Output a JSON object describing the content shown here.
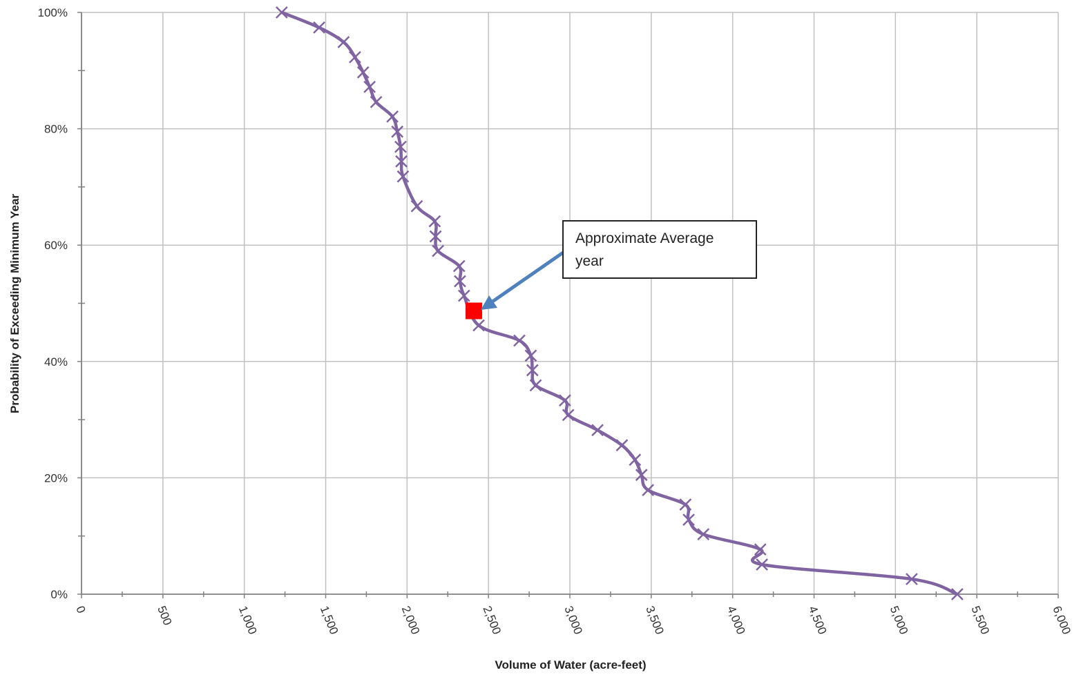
{
  "chart_data": {
    "type": "line",
    "title": "",
    "xlabel": "Volume of Water (acre-feet)",
    "ylabel": "Probability of Exceeding Minimum Year",
    "xlim": [
      0,
      6000
    ],
    "ylim": [
      0,
      1
    ],
    "x_ticks": [
      0,
      500,
      1000,
      1500,
      2000,
      2500,
      3000,
      3500,
      4000,
      4500,
      5000,
      5500,
      6000
    ],
    "x_tick_labels": [
      "0",
      "500",
      "1,000",
      "1,500",
      "2,000",
      "2,500",
      "3,000",
      "3,500",
      "4,000",
      "4,500",
      "5,000",
      "5,500",
      "6,000"
    ],
    "y_ticks": [
      0,
      0.2,
      0.4,
      0.6,
      0.8,
      1.0
    ],
    "y_tick_labels": [
      "0%",
      "20%",
      "40%",
      "60%",
      "80%",
      "100%"
    ],
    "grid": true,
    "series": [
      {
        "color": "#8064a2",
        "marker": "x",
        "points": [
          [
            1230,
            1.0
          ],
          [
            1460,
            0.974
          ],
          [
            1610,
            0.949
          ],
          [
            1680,
            0.923
          ],
          [
            1730,
            0.897
          ],
          [
            1770,
            0.872
          ],
          [
            1810,
            0.846
          ],
          [
            1910,
            0.821
          ],
          [
            1940,
            0.795
          ],
          [
            1960,
            0.769
          ],
          [
            1965,
            0.744
          ],
          [
            1975,
            0.718
          ],
          [
            2060,
            0.667
          ],
          [
            2170,
            0.641
          ],
          [
            2175,
            0.615
          ],
          [
            2190,
            0.59
          ],
          [
            2320,
            0.564
          ],
          [
            2325,
            0.538
          ],
          [
            2350,
            0.513
          ],
          [
            2440,
            0.462
          ],
          [
            2690,
            0.436
          ],
          [
            2760,
            0.41
          ],
          [
            2770,
            0.385
          ],
          [
            2790,
            0.359
          ],
          [
            2970,
            0.333
          ],
          [
            2990,
            0.308
          ],
          [
            3170,
            0.282
          ],
          [
            3320,
            0.256
          ],
          [
            3400,
            0.231
          ],
          [
            3440,
            0.205
          ],
          [
            3480,
            0.179
          ],
          [
            3710,
            0.154
          ],
          [
            3730,
            0.128
          ],
          [
            3820,
            0.103
          ],
          [
            4170,
            0.077
          ],
          [
            4180,
            0.051
          ],
          [
            5100,
            0.026
          ],
          [
            5380,
            0.0
          ]
        ]
      }
    ],
    "highlight_point": {
      "x": 2410,
      "y": 0.487,
      "color": "#ff0000"
    },
    "annotation": {
      "text_lines": [
        "Approximate Average",
        "year"
      ],
      "arrow_color": "#4f81bd"
    }
  }
}
